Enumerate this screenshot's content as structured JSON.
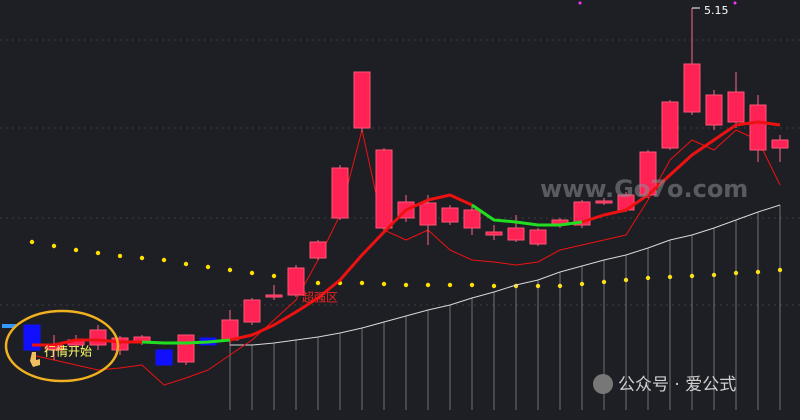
{
  "chart_data": {
    "type": "candlestick",
    "ylim": [
      3.14,
      5.19
    ],
    "up_color": "#ff2255",
    "down_color": "#1010ff",
    "open": [
      3.565,
      3.44,
      3.465,
      3.465,
      3.44,
      3.475,
      3.44,
      3.38,
      3.5,
      3.49,
      3.58,
      3.705,
      3.715,
      3.9,
      4.1,
      4.55,
      4.05,
      4.1,
      4.065,
      4.08,
      4.05,
      4.015,
      3.99,
      3.97,
      4.065,
      4.065,
      4.175,
      4.14,
      4.215,
      4.45,
      4.63,
      4.565,
      4.58,
      4.44,
      4.45
    ],
    "high": [
      3.565,
      3.515,
      3.515,
      3.565,
      3.51,
      3.515,
      3.44,
      3.515,
      3.5,
      3.64,
      3.7,
      3.765,
      3.865,
      3.99,
      4.365,
      4.83,
      4.45,
      4.215,
      4.215,
      4.165,
      4.165,
      4.065,
      4.115,
      4.05,
      4.1,
      4.19,
      4.2,
      4.23,
      4.44,
      4.69,
      5.15,
      4.74,
      4.83,
      4.715,
      4.515
    ],
    "low": [
      3.365,
      3.39,
      3.44,
      3.44,
      3.415,
      3.465,
      3.365,
      3.365,
      3.465,
      3.465,
      3.565,
      3.69,
      3.705,
      3.89,
      4.09,
      4.53,
      4.03,
      4.08,
      3.965,
      4.065,
      4.015,
      3.99,
      3.98,
      3.96,
      4.05,
      4.05,
      4.165,
      4.13,
      4.2,
      4.44,
      4.615,
      4.54,
      4.55,
      4.38,
      4.38
    ],
    "close": [
      3.44,
      3.465,
      3.49,
      3.54,
      3.5,
      3.505,
      3.365,
      3.515,
      3.465,
      3.59,
      3.69,
      3.715,
      3.85,
      3.98,
      4.35,
      4.83,
      4.44,
      4.18,
      4.175,
      4.15,
      4.14,
      4.03,
      4.05,
      4.04,
      4.09,
      4.18,
      4.185,
      4.215,
      4.43,
      4.68,
      4.87,
      4.715,
      4.73,
      4.665,
      4.49
    ],
    "lines": [
      {
        "color": "#ffe000",
        "style": "dots",
        "values": [
          3.98,
          3.96,
          3.94,
          3.925,
          3.91,
          3.9,
          3.89,
          3.87,
          3.855,
          3.84,
          3.825,
          3.81,
          3.79,
          3.775,
          3.775,
          3.775,
          3.77,
          3.765,
          3.765,
          3.765,
          3.765,
          3.76,
          3.76,
          3.76,
          3.76,
          3.77,
          3.78,
          3.79,
          3.8,
          3.805,
          3.81,
          3.815,
          3.825,
          3.83,
          3.84
        ]
      },
      {
        "color": "#d8d8d8",
        "style": "stems",
        "values": [
          null,
          null,
          null,
          null,
          null,
          null,
          null,
          null,
          null,
          3.465,
          3.465,
          3.475,
          3.49,
          3.505,
          3.525,
          3.55,
          3.58,
          3.61,
          3.64,
          3.665,
          3.7,
          3.73,
          3.765,
          3.79,
          3.83,
          3.86,
          3.89,
          3.915,
          3.95,
          3.99,
          4.015,
          4.05,
          4.09,
          4.13,
          4.165
        ]
      },
      {
        "color": "#ee1111",
        "style": "thin",
        "values": [
          3.415,
          3.39,
          3.365,
          3.34,
          3.35,
          3.365,
          3.265,
          3.3,
          3.34,
          3.415,
          3.49,
          3.59,
          3.69,
          3.89,
          4.115,
          4.54,
          4.04,
          3.99,
          4.04,
          3.94,
          3.89,
          3.88,
          3.865,
          3.88,
          3.94,
          3.965,
          3.99,
          4.015,
          4.19,
          4.39,
          4.49,
          4.44,
          4.54,
          4.49,
          4.265
        ]
      },
      {
        "color": "#ee1111",
        "style": "thick",
        "values": [
          3.465,
          3.465,
          3.49,
          3.49,
          3.48,
          3.48,
          null,
          null,
          null,
          3.49,
          3.515,
          3.565,
          3.63,
          3.7,
          3.79,
          3.915,
          4.03,
          4.14,
          4.19,
          4.215,
          4.165,
          null,
          null,
          null,
          null,
          4.08,
          4.115,
          4.14,
          4.215,
          4.315,
          4.415,
          4.49,
          4.565,
          4.58,
          4.565
        ]
      },
      {
        "color": "#22dd22",
        "style": "thick",
        "values": [
          null,
          null,
          null,
          null,
          null,
          3.48,
          3.475,
          3.475,
          3.48,
          3.49,
          null,
          null,
          null,
          null,
          null,
          null,
          null,
          null,
          null,
          null,
          4.165,
          4.09,
          4.08,
          4.065,
          4.065,
          4.08,
          null,
          null,
          null,
          null,
          null,
          null,
          null,
          null,
          null
        ]
      }
    ],
    "annotations": [
      "行情开始",
      "超强区"
    ],
    "watermarks": [
      "www.Go7o.com",
      "公众号 · 爱公式"
    ]
  }
}
